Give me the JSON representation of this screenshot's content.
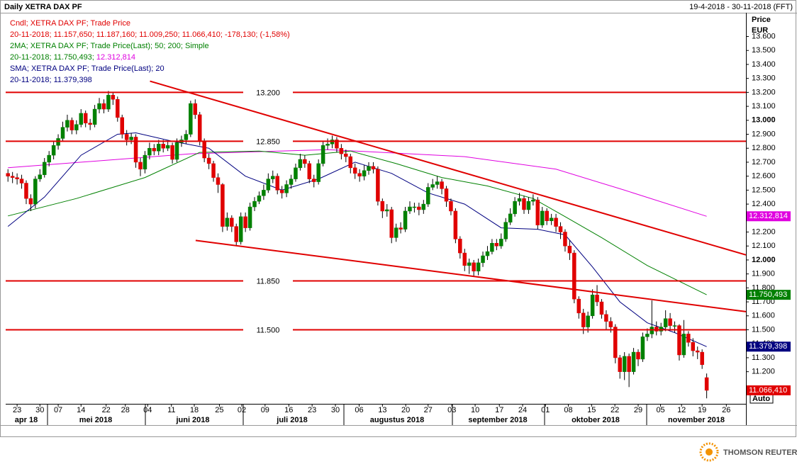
{
  "chart_data": {
    "type": "candlestick",
    "title": "Daily XETRA DAX PF",
    "date_range": "19-4-2018 - 30-11-2018 (FFT)",
    "y_axis_label": "Price",
    "y_axis_unit": "EUR",
    "scale_mode": "Auto",
    "source": "THOMSON REUTERS",
    "legend": [
      [
        {
          "text": "Cndl; XETRA DAX PF; Trade Price",
          "color": "#e00000"
        }
      ],
      [
        {
          "text": "20-11-2018; 11.157,650; 11.187,160; 11.009,250; 11.066,410; -178,130; (-1,58%)",
          "color": "#e00000"
        }
      ],
      [
        {
          "text": "2MA; XETRA DAX PF; Trade Price(Last);  50; 200; Simple",
          "color": "#008000"
        }
      ],
      [
        {
          "text": "20-11-2018; 11.750,493; ",
          "color": "#008000"
        },
        {
          "text": "12.312,814",
          "color": "#e000e0"
        }
      ],
      [
        {
          "text": "SMA; XETRA DAX PF; Trade Price(Last);  20",
          "color": "#000080"
        }
      ],
      [
        {
          "text": "20-11-2018; 11.379,398",
          "color": "#000080"
        }
      ]
    ],
    "xlim": [
      -0.5,
      161.6
    ],
    "ylim": [
      10970,
      13770
    ],
    "yticks": [
      {
        "value": 11200,
        "label": "11.200"
      },
      {
        "value": 11300,
        "label": "11.300"
      },
      {
        "value": 11400,
        "label": "11.400"
      },
      {
        "value": 11500,
        "label": "11.500"
      },
      {
        "value": 11600,
        "label": "11.600"
      },
      {
        "value": 11700,
        "label": "11.700"
      },
      {
        "value": 11800,
        "label": "11.800"
      },
      {
        "value": 11900,
        "label": "11.900"
      },
      {
        "value": 12000,
        "label": "12.000"
      },
      {
        "value": 12100,
        "label": "12.100"
      },
      {
        "value": 12200,
        "label": "12.200"
      },
      {
        "value": 12300,
        "label": "12.300"
      },
      {
        "value": 12400,
        "label": "12.400"
      },
      {
        "value": 12500,
        "label": "12.500"
      },
      {
        "value": 12600,
        "label": "12.600"
      },
      {
        "value": 12700,
        "label": "12.700"
      },
      {
        "value": 12800,
        "label": "12.800"
      },
      {
        "value": 12900,
        "label": "12.900"
      },
      {
        "value": 13000,
        "label": "13.000"
      },
      {
        "value": 13100,
        "label": "13.100"
      },
      {
        "value": 13200,
        "label": "13.200"
      },
      {
        "value": 13300,
        "label": "13.300"
      },
      {
        "value": 13400,
        "label": "13.400"
      },
      {
        "value": 13500,
        "label": "13.500"
      },
      {
        "value": 13600,
        "label": "13.600"
      }
    ],
    "xticks": [
      {
        "value": 2,
        "label": "23"
      },
      {
        "value": 7,
        "label": "30"
      },
      {
        "value": 11,
        "label": "07"
      },
      {
        "value": 16,
        "label": "14"
      },
      {
        "value": 21.5,
        "label": "22"
      },
      {
        "value": 25.7,
        "label": "28"
      },
      {
        "value": 30.6,
        "label": "04"
      },
      {
        "value": 35.8,
        "label": "11"
      },
      {
        "value": 40.8,
        "label": "18"
      },
      {
        "value": 46.3,
        "label": "25"
      },
      {
        "value": 51.2,
        "label": "02"
      },
      {
        "value": 56.3,
        "label": "09"
      },
      {
        "value": 61.5,
        "label": "16"
      },
      {
        "value": 66.6,
        "label": "23"
      },
      {
        "value": 71.7,
        "label": "30"
      },
      {
        "value": 76.9,
        "label": "06"
      },
      {
        "value": 82,
        "label": "13"
      },
      {
        "value": 87.1,
        "label": "20"
      },
      {
        "value": 92,
        "label": "27"
      },
      {
        "value": 97.2,
        "label": "03"
      },
      {
        "value": 102.3,
        "label": "10"
      },
      {
        "value": 107.6,
        "label": "17"
      },
      {
        "value": 112.7,
        "label": "24"
      },
      {
        "value": 117.7,
        "label": "01"
      },
      {
        "value": 122.7,
        "label": "08"
      },
      {
        "value": 127.8,
        "label": "15"
      },
      {
        "value": 132.9,
        "label": "22"
      },
      {
        "value": 138,
        "label": "29"
      },
      {
        "value": 142.9,
        "label": "05"
      },
      {
        "value": 147.5,
        "label": "12"
      },
      {
        "value": 152,
        "label": "19"
      },
      {
        "value": 157.3,
        "label": "26"
      }
    ],
    "months": [
      "apr 18",
      "mei 2018",
      "juni 2018",
      "juli 2018",
      "augustus 2018",
      "september 2018",
      "oktober 2018",
      "november 2018"
    ],
    "levels": [
      {
        "value": 13200,
        "label": "13.200"
      },
      {
        "value": 12850,
        "label": "12.850"
      },
      {
        "value": 11850,
        "label": "11.850"
      },
      {
        "value": 11500,
        "label": "11.500"
      }
    ],
    "level_color": "#e00000",
    "trendlines": [
      {
        "x": [
          31.1,
          161.6
        ],
        "values": [
          13280,
          12036
        ]
      },
      {
        "x": [
          41.1,
          161.6
        ],
        "values": [
          12140,
          11630
        ]
      }
    ],
    "ohlc": {
      "up_color": "#008000",
      "down_color": "#e00000",
      "close_label": "11.066,410",
      "open": [
        12620,
        12600,
        12590,
        12580,
        12550,
        12440,
        12400,
        12580,
        12610,
        12700,
        12750,
        12820,
        12870,
        12950,
        13000,
        12930,
        12970,
        13050,
        12980,
        12970,
        13080,
        13120,
        13080,
        13180,
        13150,
        13020,
        12900,
        12860,
        12880,
        12700,
        12650,
        12750,
        12800,
        12780,
        12830,
        12800,
        12820,
        12720,
        12840,
        12860,
        12900,
        13120,
        13040,
        12850,
        12730,
        12690,
        12590,
        12540,
        12240,
        12300,
        12240,
        12130,
        12310,
        12230,
        12380,
        12420,
        12460,
        12500,
        12580,
        12600,
        12500,
        12480,
        12540,
        12580,
        12660,
        12720,
        12690,
        12580,
        12560,
        12690,
        12820,
        12830,
        12860,
        12800,
        12760,
        12740,
        12660,
        12620,
        12600,
        12640,
        12670,
        12650,
        12420,
        12350,
        12360,
        12160,
        12230,
        12220,
        12350,
        12380,
        12380,
        12360,
        12400,
        12520,
        12540,
        12560,
        12510,
        12420,
        12350,
        12150,
        12050,
        11960,
        11980,
        11920,
        11980,
        12030,
        12060,
        12120,
        12100,
        12150,
        12270,
        12330,
        12420,
        12440,
        12360,
        12420,
        12430,
        12250,
        12350,
        12280,
        12300,
        12240,
        12200,
        12100,
        12050,
        11720,
        11620,
        11520,
        11600,
        11750,
        11700,
        11610,
        11560,
        11520,
        11300,
        11200,
        11310,
        11200,
        11340,
        11290,
        11450,
        11470,
        11520,
        11490,
        11520,
        11580,
        11530,
        11530,
        11320,
        11470,
        11410,
        11350,
        11340,
        11157.65
      ],
      "high": [
        12650,
        12630,
        12620,
        12610,
        12570,
        12470,
        12600,
        12650,
        12730,
        12780,
        12850,
        12900,
        12990,
        13040,
        13020,
        13000,
        13080,
        13070,
        13010,
        13110,
        13160,
        13150,
        13210,
        13200,
        13170,
        13040,
        12930,
        12910,
        12900,
        12730,
        12780,
        12840,
        12830,
        12860,
        12860,
        12850,
        12840,
        12870,
        12890,
        12930,
        13140,
        13150,
        13060,
        12870,
        12760,
        12710,
        12620,
        12550,
        12340,
        12320,
        12260,
        12340,
        12340,
        12410,
        12450,
        12490,
        12540,
        12620,
        12640,
        12620,
        12530,
        12570,
        12610,
        12690,
        12760,
        12750,
        12710,
        12610,
        12720,
        12850,
        12870,
        12890,
        12880,
        12830,
        12790,
        12760,
        12690,
        12650,
        12680,
        12700,
        12700,
        12670,
        12440,
        12400,
        12380,
        12260,
        12270,
        12380,
        12420,
        12410,
        12410,
        12430,
        12550,
        12580,
        12600,
        12580,
        12530,
        12440,
        12370,
        12170,
        12080,
        12010,
        12000,
        12010,
        12060,
        12100,
        12150,
        12150,
        12190,
        12300,
        12370,
        12450,
        12480,
        12460,
        12450,
        12470,
        12450,
        12380,
        12370,
        12330,
        12330,
        12270,
        12220,
        12140,
        12070,
        11740,
        11650,
        11630,
        11790,
        11820,
        11720,
        11640,
        11590,
        11540,
        11320,
        11340,
        11330,
        11370,
        11360,
        11480,
        11510,
        11710,
        11560,
        11550,
        11640,
        11620,
        11560,
        11540,
        11570,
        11490,
        11440,
        11380,
        11360,
        11187.16
      ],
      "low": [
        12560,
        12550,
        12540,
        12510,
        12400,
        12350,
        12370,
        12560,
        12590,
        12670,
        12720,
        12790,
        12850,
        12920,
        12900,
        12900,
        12950,
        12950,
        12930,
        12950,
        13050,
        13050,
        13060,
        13110,
        12990,
        12870,
        12820,
        12830,
        12660,
        12600,
        12620,
        12720,
        12750,
        12750,
        12770,
        12780,
        12690,
        12700,
        12810,
        12830,
        12880,
        13010,
        12820,
        12700,
        12650,
        12560,
        12480,
        12200,
        12210,
        12200,
        12100,
        12110,
        12200,
        12210,
        12350,
        12400,
        12430,
        12480,
        12550,
        12470,
        12440,
        12450,
        12510,
        12560,
        12640,
        12660,
        12550,
        12520,
        12540,
        12670,
        12790,
        12800,
        12770,
        12720,
        12700,
        12620,
        12580,
        12560,
        12570,
        12610,
        12620,
        12390,
        12300,
        12310,
        12120,
        12130,
        12190,
        12200,
        12330,
        12340,
        12320,
        12330,
        12380,
        12500,
        12510,
        12470,
        12380,
        12320,
        12120,
        12010,
        11920,
        11900,
        11880,
        11890,
        11950,
        12000,
        12040,
        12070,
        12080,
        12130,
        12250,
        12310,
        12390,
        12330,
        12330,
        12390,
        12220,
        12230,
        12250,
        12250,
        12200,
        12150,
        12060,
        12000,
        11690,
        11580,
        11470,
        11480,
        11580,
        11670,
        11580,
        11500,
        11480,
        11260,
        11150,
        11140,
        11090,
        11180,
        11240,
        11270,
        11420,
        11440,
        11460,
        11460,
        11490,
        11500,
        11480,
        11280,
        11300,
        11380,
        11310,
        11290,
        11220,
        11009.25
      ],
      "close": [
        12600,
        12590,
        12580,
        12550,
        12440,
        12400,
        12580,
        12610,
        12700,
        12750,
        12820,
        12870,
        12950,
        13000,
        12930,
        12970,
        13050,
        12980,
        12970,
        13080,
        13120,
        13080,
        13180,
        13150,
        13020,
        12900,
        12860,
        12880,
        12700,
        12650,
        12750,
        12800,
        12780,
        12830,
        12800,
        12820,
        12720,
        12840,
        12860,
        12900,
        13120,
        13040,
        12850,
        12730,
        12690,
        12590,
        12540,
        12240,
        12300,
        12240,
        12130,
        12310,
        12230,
        12380,
        12420,
        12460,
        12500,
        12580,
        12600,
        12500,
        12480,
        12540,
        12580,
        12660,
        12720,
        12690,
        12580,
        12560,
        12690,
        12820,
        12830,
        12860,
        12800,
        12760,
        12740,
        12660,
        12620,
        12600,
        12640,
        12670,
        12650,
        12420,
        12350,
        12360,
        12160,
        12230,
        12220,
        12350,
        12380,
        12380,
        12360,
        12400,
        12520,
        12540,
        12560,
        12510,
        12420,
        12350,
        12150,
        12050,
        11960,
        11980,
        11920,
        11980,
        12030,
        12060,
        12120,
        12100,
        12150,
        12270,
        12330,
        12420,
        12440,
        12360,
        12420,
        12430,
        12250,
        12350,
        12280,
        12300,
        12240,
        12200,
        12100,
        12050,
        11720,
        11620,
        11520,
        11600,
        11750,
        11700,
        11610,
        11560,
        11520,
        11300,
        11200,
        11310,
        11200,
        11340,
        11290,
        11450,
        11470,
        11520,
        11490,
        11520,
        11580,
        11530,
        11530,
        11320,
        11470,
        11410,
        11350,
        11340,
        11250,
        11066.41
      ]
    },
    "series": [
      {
        "color": "#e000e0",
        "x": [
          0,
          40,
          70,
          100,
          120,
          135,
          153
        ],
        "values": [
          12660,
          12760,
          12790,
          12740,
          12650,
          12500,
          12312.814
        ],
        "end_label": "12.312,814"
      },
      {
        "color": "#008000",
        "x": [
          0,
          15,
          30,
          42,
          55,
          65,
          75,
          85,
          95,
          105,
          115,
          122,
          130,
          140,
          153
        ],
        "values": [
          12315,
          12440,
          12590,
          12770,
          12780,
          12750,
          12780,
          12690,
          12590,
          12530,
          12440,
          12310,
          12160,
          11960,
          11750.493
        ],
        "end_label": "11.750,493"
      },
      {
        "color": "#000080",
        "x": [
          0,
          8,
          16,
          24,
          28,
          36,
          44,
          52,
          60,
          68,
          76,
          84,
          92,
          100,
          108,
          116,
          122,
          128,
          134,
          140,
          146,
          153
        ],
        "values": [
          12240,
          12450,
          12750,
          12900,
          12910,
          12850,
          12800,
          12600,
          12500,
          12580,
          12700,
          12620,
          12480,
          12400,
          12230,
          12220,
          12180,
          11950,
          11700,
          11550,
          11480,
          11379.398
        ],
        "end_label": "11.379,398"
      }
    ]
  }
}
